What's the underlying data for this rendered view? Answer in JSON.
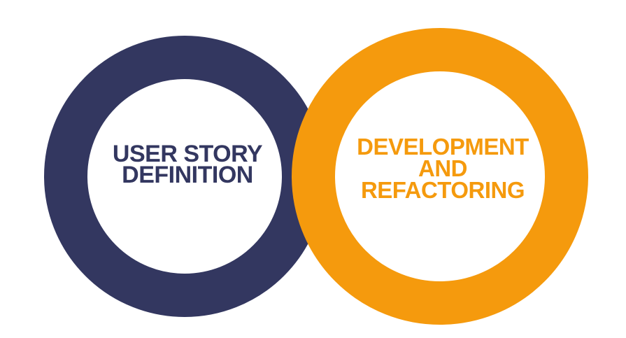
{
  "colors": {
    "left_ring": "#333760",
    "right_ring": "#F59A0D",
    "inner_fill": "#ffffff"
  },
  "nodes": [
    {
      "id": "user-story-definition",
      "lines": [
        "USER STORY",
        "DEFINITION"
      ],
      "color_key": "left_ring"
    },
    {
      "id": "development-and-refactoring",
      "lines": [
        "DEVELOPMENT",
        "AND",
        "REFACTORING"
      ],
      "color_key": "right_ring"
    }
  ]
}
